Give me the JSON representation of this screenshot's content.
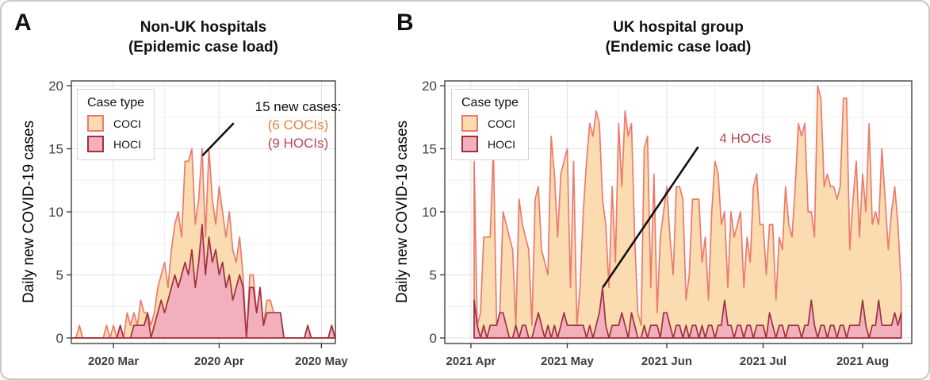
{
  "legend": {
    "title": "Case type",
    "items": [
      {
        "label": "COCI"
      },
      {
        "label": "HOCI"
      }
    ]
  },
  "panels": [
    {
      "letter": "A",
      "title_line1": "Non-UK hospitals",
      "title_line2": "(Epidemic case load)",
      "y_axis_label": "Daily new COVID-19 cases",
      "annotation": {
        "line1": "15 new cases:",
        "line2": "(6 COCIs)",
        "line3": "(9 HOCIs)"
      }
    },
    {
      "letter": "B",
      "title_line1": "UK hospital group",
      "title_line2": "(Endemic case load)",
      "y_axis_label": "Daily new COVID-19 cases",
      "annotation": {
        "line1": "4 HOCIs"
      }
    }
  ],
  "colors": {
    "coci_fill": "#FADCB0",
    "coci_stroke": "#EC7A6E",
    "hoci_fill": "#F2AFBC",
    "hoci_stroke": "#A0313F",
    "annotation_orange": "#E0823E",
    "annotation_red": "#BD4456",
    "annotation_line": "#111111",
    "grid_major": "#E3E3E3",
    "grid_minor": "#F1F1F1",
    "panel_border": "#333333",
    "tick_label": "#3F3F3F"
  },
  "chart_data": [
    {
      "type": "area",
      "stacked": true,
      "title": "Non-UK hospitals (Epidemic case load)",
      "xlabel": "",
      "ylabel": "Daily new COVID-19 cases",
      "ylim": [
        0,
        20
      ],
      "y_major_ticks": [
        0,
        5,
        10,
        15,
        20
      ],
      "y_minor_ticks": [
        2.5,
        7.5,
        12.5,
        17.5
      ],
      "grid": true,
      "legend_position": "top-left-inside",
      "x_unit": "day",
      "x_start": "2020-02-18",
      "x_tick_labels": [
        "2020 Mar",
        "2020 Apr",
        "2020 May"
      ],
      "x_tick_day_index": [
        12,
        43,
        73
      ],
      "x_minor_day_index": [
        27,
        58
      ],
      "series": [
        {
          "name": "COCI",
          "values": [
            0,
            0,
            1,
            0,
            0,
            0,
            0,
            0,
            0,
            0,
            1,
            0,
            1,
            0,
            0,
            0,
            2,
            1,
            1,
            0,
            2,
            1,
            0,
            1,
            1,
            2,
            2,
            4,
            1,
            3,
            4,
            6,
            3,
            8,
            9,
            8,
            5,
            5,
            6,
            3,
            7,
            5,
            2,
            7,
            4,
            4,
            5,
            4,
            2,
            3,
            1,
            0,
            1,
            1,
            0,
            0,
            0,
            1,
            1,
            0,
            0,
            0,
            0,
            0,
            0,
            0,
            0,
            0,
            0,
            0,
            0,
            0,
            0,
            0,
            0,
            0,
            0,
            0
          ]
        },
        {
          "name": "HOCI",
          "values": [
            0,
            0,
            0,
            0,
            0,
            0,
            0,
            0,
            0,
            0,
            0,
            0,
            0,
            0,
            1,
            0,
            0,
            0,
            1,
            1,
            1,
            1,
            2,
            0,
            1,
            2,
            3,
            2,
            3,
            4,
            5,
            4,
            5,
            6,
            5,
            7,
            4,
            6,
            9,
            5,
            8,
            6,
            7,
            5,
            6,
            4,
            5,
            3,
            4,
            5,
            4,
            0,
            4,
            4,
            2,
            4,
            1,
            2,
            2,
            2,
            2,
            2,
            0,
            0,
            0,
            0,
            0,
            0,
            0,
            1,
            0,
            0,
            0,
            0,
            0,
            0,
            1,
            0
          ]
        }
      ],
      "annotation": {
        "text": "15 new cases: (6 COCIs) (9 HOCIs)",
        "day_index": 38,
        "total": 15,
        "coci": 6,
        "hoci": 9
      }
    },
    {
      "type": "area",
      "stacked": true,
      "title": "UK hospital group (Endemic case load)",
      "xlabel": "",
      "ylabel": "Daily new COVID-19 cases",
      "ylim": [
        0,
        20
      ],
      "y_major_ticks": [
        0,
        5,
        10,
        15,
        20
      ],
      "y_minor_ticks": [
        2.5,
        7.5,
        12.5,
        17.5
      ],
      "grid": true,
      "legend_position": "top-left-inside",
      "x_unit": "day",
      "x_start": "2021-04-02",
      "x_tick_labels": [
        "2021 Apr",
        "2021 May",
        "2021 Jun",
        "2021 Jul",
        "2021 Aug"
      ],
      "x_tick_day_index": [
        -1,
        29,
        60,
        90,
        121
      ],
      "x_minor_day_index": [
        14,
        45,
        75,
        106
      ],
      "series": [
        {
          "name": "COCI",
          "values": [
            11,
            0,
            2,
            7,
            8,
            7,
            14,
            0,
            0,
            8,
            8,
            8,
            7,
            0,
            11,
            8,
            7,
            7,
            1,
            10,
            10,
            6,
            6,
            4,
            16,
            12,
            8,
            12,
            12,
            14,
            3,
            13,
            0,
            3,
            9,
            14,
            16,
            16,
            17,
            15,
            7,
            8,
            4,
            11,
            5,
            16,
            10,
            17,
            16,
            15,
            7,
            2,
            1,
            14,
            16,
            3,
            12,
            1,
            8,
            8,
            10,
            7,
            5,
            11,
            11,
            11,
            2,
            5,
            10,
            10,
            11,
            5,
            8,
            2,
            9,
            14,
            12,
            8,
            7,
            3,
            9,
            8,
            8,
            9,
            4,
            7,
            5,
            12,
            12,
            8,
            8,
            5,
            7,
            8,
            3,
            7,
            6,
            12,
            8,
            7,
            11,
            16,
            16,
            16,
            9,
            7,
            7,
            20,
            18,
            11,
            13,
            11,
            11,
            11,
            11,
            18,
            19,
            6,
            10,
            13,
            7,
            10,
            9,
            17,
            8,
            9,
            6,
            14,
            10,
            6,
            9,
            10,
            8,
            2
          ]
        },
        {
          "name": "HOCI",
          "values": [
            3,
            1,
            0,
            1,
            0,
            1,
            1,
            1,
            2,
            2,
            1,
            0,
            0,
            1,
            0,
            1,
            1,
            0,
            0,
            1,
            2,
            1,
            0,
            1,
            0,
            1,
            0,
            1,
            2,
            1,
            1,
            1,
            1,
            1,
            1,
            0,
            1,
            0,
            1,
            2,
            4,
            1,
            0,
            1,
            1,
            1,
            2,
            1,
            0,
            2,
            1,
            0,
            0,
            1,
            0,
            1,
            1,
            1,
            0,
            2,
            2,
            1,
            0,
            1,
            1,
            0,
            1,
            0,
            1,
            1,
            0,
            1,
            0,
            1,
            1,
            0,
            1,
            1,
            3,
            1,
            1,
            0,
            1,
            1,
            0,
            1,
            1,
            0,
            1,
            1,
            1,
            0,
            2,
            1,
            0,
            1,
            1,
            0,
            1,
            1,
            1,
            1,
            0,
            1,
            1,
            3,
            1,
            0,
            1,
            1,
            0,
            1,
            1,
            0,
            1,
            1,
            0,
            1,
            1,
            1,
            1,
            3,
            1,
            0,
            1,
            1,
            3,
            1,
            1,
            1,
            1,
            2,
            1,
            2
          ]
        }
      ],
      "annotation": {
        "text": "4 HOCIs",
        "day_index": 40,
        "hoci": 4
      }
    }
  ]
}
